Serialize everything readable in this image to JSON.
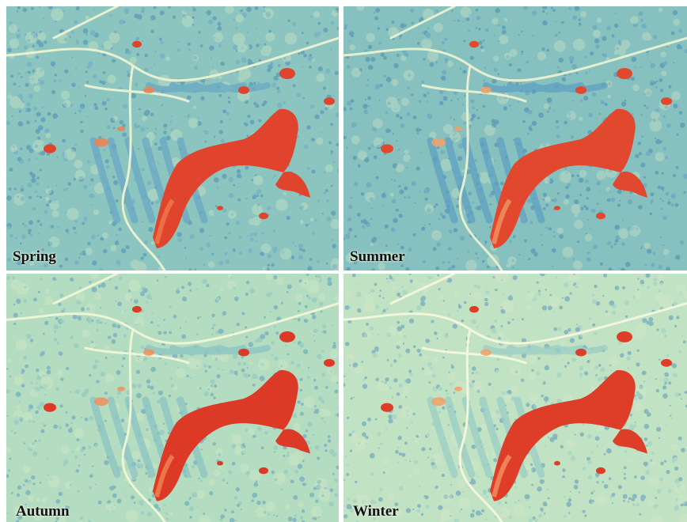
{
  "panels": [
    {
      "id": "spring",
      "label": "Spring",
      "base": "#8cc4c0",
      "texture": "#4a8fb4",
      "road": "#e8f0d0",
      "water": "#e0442c",
      "waterEdge": "#f08050",
      "veg": "#6aa9c4"
    },
    {
      "id": "summer",
      "label": "Summer",
      "base": "#86c0bf",
      "texture": "#4a8cb2",
      "road": "#e6eed0",
      "water": "#e2482e",
      "waterEdge": "#f2a068",
      "veg": "#5fa0c2"
    },
    {
      "id": "autumn",
      "label": "Autumn",
      "base": "#b4dcc0",
      "texture": "#5e9ec0",
      "road": "#eef4d6",
      "water": "#dc3a26",
      "waterEdge": "#f09058",
      "veg": "#8bc4c4"
    },
    {
      "id": "winter",
      "label": "Winter",
      "base": "#c2e2c4",
      "texture": "#5a98bc",
      "road": "#f2f6dc",
      "water": "#de3e28",
      "waterEdge": "#f3a066",
      "veg": "#9acfc6"
    }
  ]
}
